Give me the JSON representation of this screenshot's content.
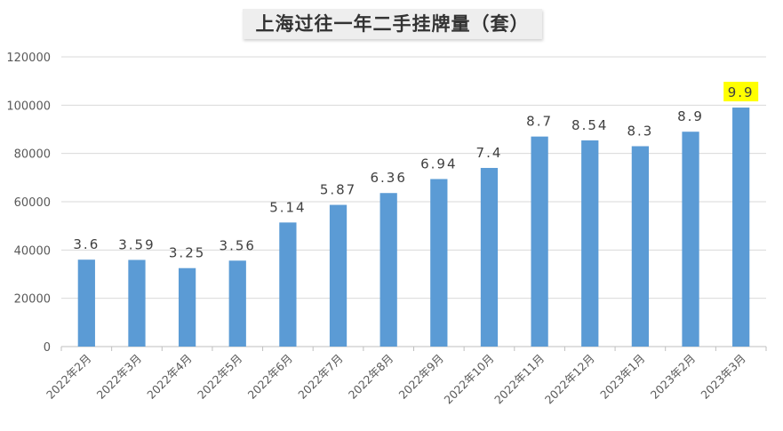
{
  "chart_data": {
    "type": "bar",
    "title": "上海过往一年二手挂牌量（套）",
    "xlabel": "",
    "ylabel": "",
    "categories": [
      "2022年2月",
      "2022年3月",
      "2022年4月",
      "2022年5月",
      "2022年6月",
      "2022年7月",
      "2022年8月",
      "2022年9月",
      "2022年10月",
      "2022年11月",
      "2022年12月",
      "2023年1月",
      "2023年2月",
      "2023年3月"
    ],
    "values": [
      36000,
      35900,
      32500,
      35600,
      51400,
      58700,
      63600,
      69400,
      74000,
      87000,
      85400,
      83000,
      89000,
      99000
    ],
    "data_labels": [
      "3.6",
      "3.59",
      "3.25",
      "3.56",
      "5.14",
      "5.87",
      "6.36",
      "6.94",
      "7.4",
      "8.7",
      "8.54",
      "8.3",
      "8.9",
      "9.9"
    ],
    "highlighted_label_index": 13,
    "ylim": [
      0,
      120000
    ],
    "yticks": [
      "0",
      "20000",
      "40000",
      "60000",
      "80000",
      "100000",
      "120000"
    ],
    "grid": true,
    "legend": "none",
    "colors": {
      "bar": "#5b9bd5",
      "grid": "#d9d9d9",
      "axis_text": "#595959",
      "label_text": "#404040",
      "highlight": "#ffff00"
    }
  }
}
